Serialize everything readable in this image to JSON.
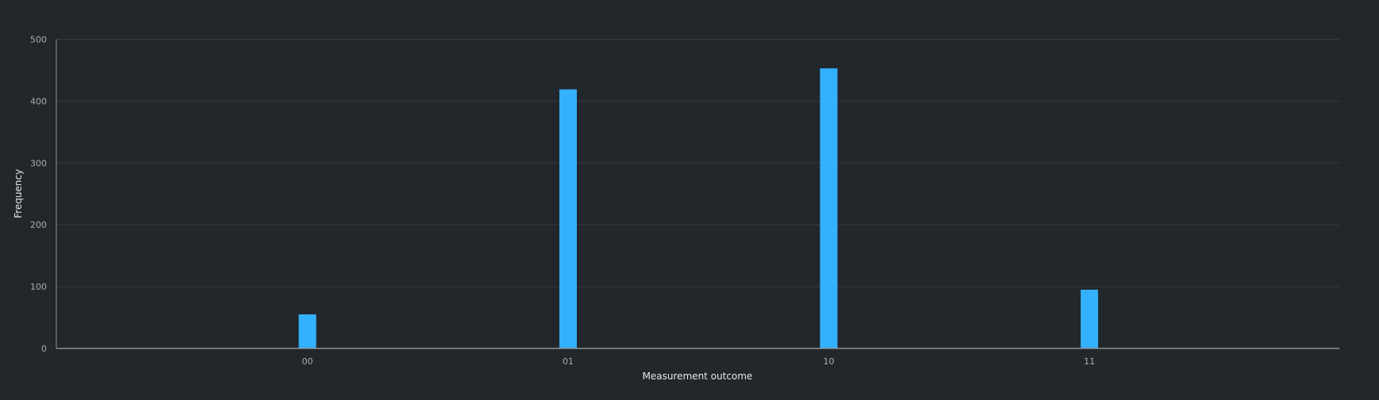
{
  "colors": {
    "background": "#22272c",
    "bar": "#33b1ff",
    "grid": "#363b40",
    "axis": "#8d9196",
    "tick_text": "#a8adb3",
    "title_text": "#e6e8ea"
  },
  "chart_data": {
    "type": "bar",
    "categories": [
      "00",
      "01",
      "10",
      "11"
    ],
    "values": [
      55,
      419,
      453,
      95
    ],
    "title": "",
    "xlabel": "Measurement outcome",
    "ylabel": "Frequency",
    "ylim": [
      0,
      500
    ],
    "yticks": [
      0,
      100,
      200,
      300,
      400,
      500
    ],
    "grid": true,
    "legend": "none"
  }
}
